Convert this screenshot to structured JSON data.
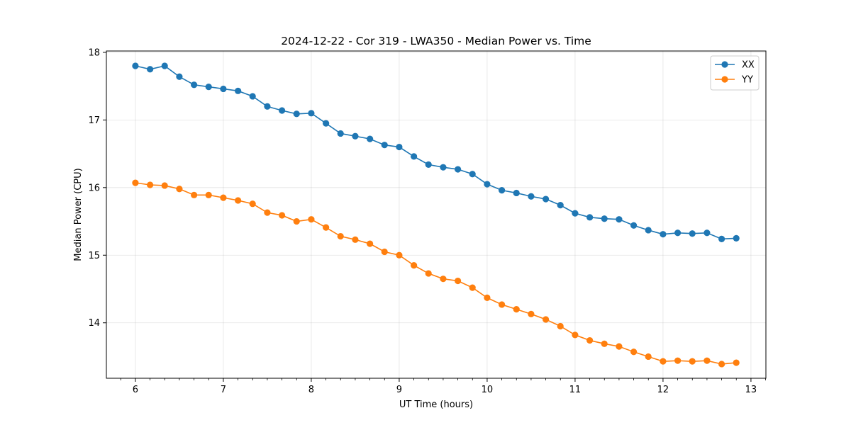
{
  "chart_data": {
    "type": "line",
    "title": "2024-12-22 - Cor 319 - LWA350 - Median Power vs. Time",
    "xlabel": "UT Time (hours)",
    "ylabel": "Median Power (CPU)",
    "xlim": [
      5.67,
      13.17
    ],
    "ylim": [
      13.18,
      18.02
    ],
    "xticks": [
      6,
      7,
      8,
      9,
      10,
      11,
      12,
      13
    ],
    "yticks": [
      14,
      15,
      16,
      17,
      18
    ],
    "grid": true,
    "legend_position": "top-right",
    "x": [
      6.0,
      6.167,
      6.333,
      6.5,
      6.667,
      6.833,
      7.0,
      7.167,
      7.333,
      7.5,
      7.667,
      7.833,
      8.0,
      8.167,
      8.333,
      8.5,
      8.667,
      8.833,
      9.0,
      9.167,
      9.333,
      9.5,
      9.667,
      9.833,
      10.0,
      10.167,
      10.333,
      10.5,
      10.667,
      10.833,
      11.0,
      11.167,
      11.333,
      11.5,
      11.667,
      11.833,
      12.0,
      12.167,
      12.333,
      12.5,
      12.667,
      12.833
    ],
    "series": [
      {
        "name": "XX",
        "color": "#1f77b4",
        "values": [
          17.8,
          17.75,
          17.8,
          17.64,
          17.52,
          17.49,
          17.46,
          17.43,
          17.35,
          17.2,
          17.14,
          17.09,
          17.1,
          16.95,
          16.8,
          16.76,
          16.72,
          16.63,
          16.6,
          16.46,
          16.34,
          16.3,
          16.27,
          16.2,
          16.05,
          15.96,
          15.92,
          15.87,
          15.83,
          15.74,
          15.62,
          15.56,
          15.54,
          15.53,
          15.44,
          15.37,
          15.31,
          15.33,
          15.32,
          15.33,
          15.24,
          15.25
        ]
      },
      {
        "name": "YY",
        "color": "#ff7f0e",
        "values": [
          16.07,
          16.04,
          16.03,
          15.98,
          15.89,
          15.89,
          15.85,
          15.81,
          15.76,
          15.63,
          15.59,
          15.5,
          15.53,
          15.41,
          15.28,
          15.23,
          15.17,
          15.05,
          15.0,
          14.85,
          14.73,
          14.65,
          14.62,
          14.52,
          14.37,
          14.27,
          14.2,
          14.13,
          14.05,
          13.95,
          13.82,
          13.74,
          13.69,
          13.65,
          13.57,
          13.5,
          13.43,
          13.44,
          13.43,
          13.44,
          13.39,
          13.41
        ]
      }
    ]
  }
}
